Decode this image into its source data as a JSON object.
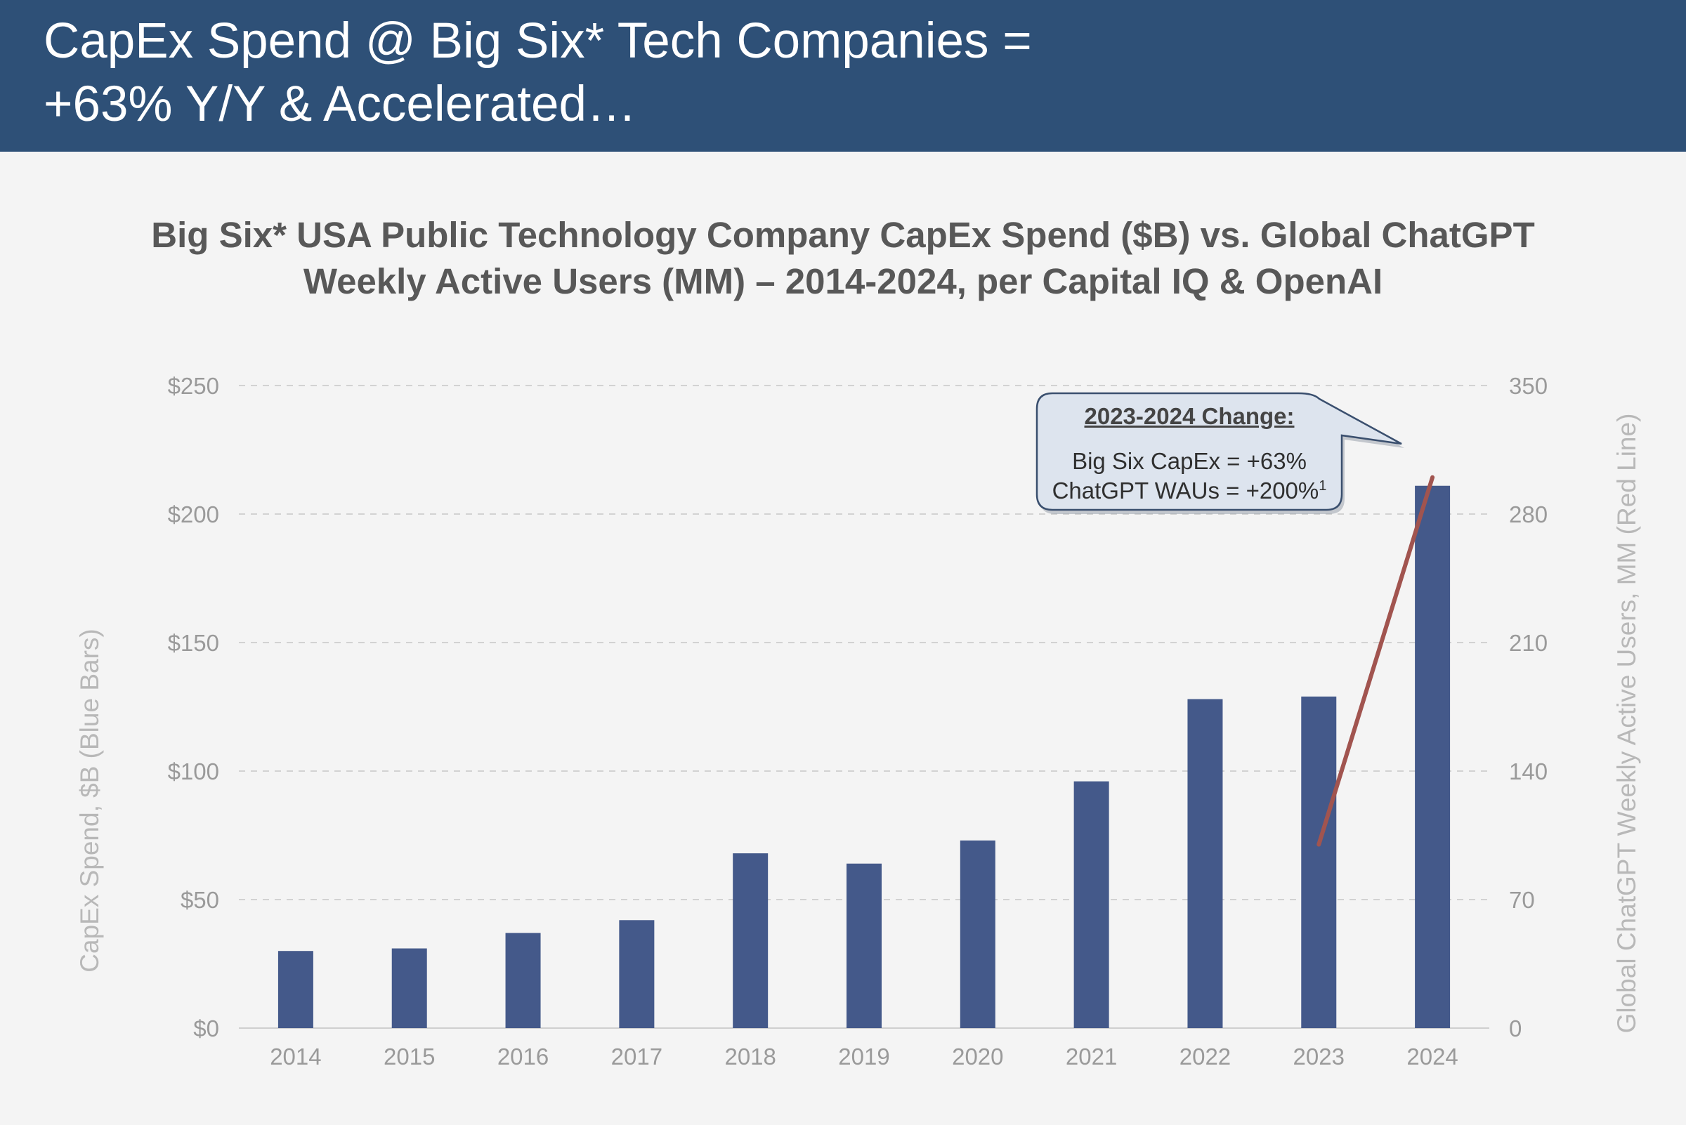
{
  "header": {
    "title_line1": "CapEx Spend @ Big Six* Tech Companies =",
    "title_line2": "+63% Y/Y & Accelerated…"
  },
  "colors": {
    "header_bg": "#2e5077",
    "bar": "#44598a",
    "line": "#a1544f",
    "callout_bg": "#dde4ee"
  },
  "chart_data": {
    "type": "bar",
    "title_line1": "Big Six* USA Public Technology Company CapEx Spend ($B) vs. Global ChatGPT",
    "title_line2": "Weekly Active Users (MM) – 2014-2024, per Capital IQ & OpenAI",
    "categories": [
      "2014",
      "2015",
      "2016",
      "2017",
      "2018",
      "2019",
      "2020",
      "2021",
      "2022",
      "2023",
      "2024"
    ],
    "series": [
      {
        "axis": "left",
        "type": "bar",
        "values": [
          30,
          31,
          37,
          42,
          68,
          64,
          73,
          96,
          128,
          129,
          211
        ]
      },
      {
        "axis": "right",
        "type": "line",
        "x": [
          "2023",
          "2024"
        ],
        "values": [
          100,
          300
        ]
      }
    ],
    "ylabel": "CapEx Spend, $B (Blue Bars)",
    "ylabel_right": "Global ChatGPT Weekly Active Users, MM (Red Line)",
    "ylim": [
      0,
      250
    ],
    "ylim_right": [
      0,
      350
    ],
    "yticks": [
      "$0",
      "$50",
      "$100",
      "$150",
      "$200",
      "$250"
    ],
    "yticks_right": [
      "0",
      "70",
      "140",
      "210",
      "280",
      "350"
    ],
    "grid": true,
    "annotation": {
      "heading": "2023-2024 Change:",
      "line1": "Big Six CapEx = +63%",
      "line2": "ChatGPT WAUs = +200%",
      "footnote_marker": "1"
    }
  }
}
